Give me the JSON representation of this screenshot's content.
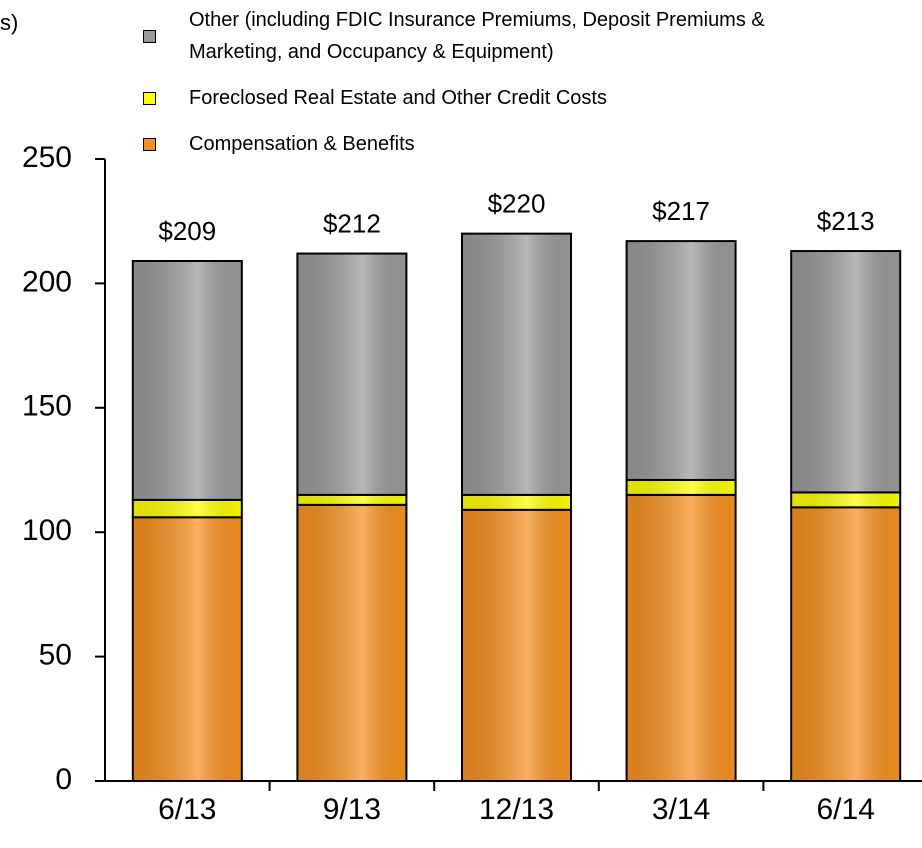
{
  "chart_data": {
    "type": "stacked_bar",
    "y_label": "s)",
    "categories": [
      "6/13",
      "9/13",
      "12/13",
      "3/14",
      "6/14"
    ],
    "series": [
      {
        "name": "Compensation & Benefits",
        "color": "#f7901e",
        "values": [
          106,
          111,
          109,
          115,
          110
        ]
      },
      {
        "name": "Foreclosed Real Estate and Other Credit Costs",
        "color": "#ffff00",
        "values": [
          7,
          4,
          6,
          6,
          6
        ]
      },
      {
        "name": "Other (including FDIC Insurance Premiums, Deposit Premiums & Marketing, and Occupancy & Equipment)",
        "color": "#9a9a9a",
        "values": [
          96,
          97,
          105,
          96,
          97
        ]
      }
    ],
    "totals": [
      209,
      212,
      220,
      217,
      213
    ],
    "value_labels": [
      "$209",
      "$212",
      "$220",
      "$217",
      "$213"
    ],
    "ylim": [
      0,
      250
    ],
    "yticks": [
      0,
      50,
      100,
      150,
      200,
      250
    ]
  }
}
